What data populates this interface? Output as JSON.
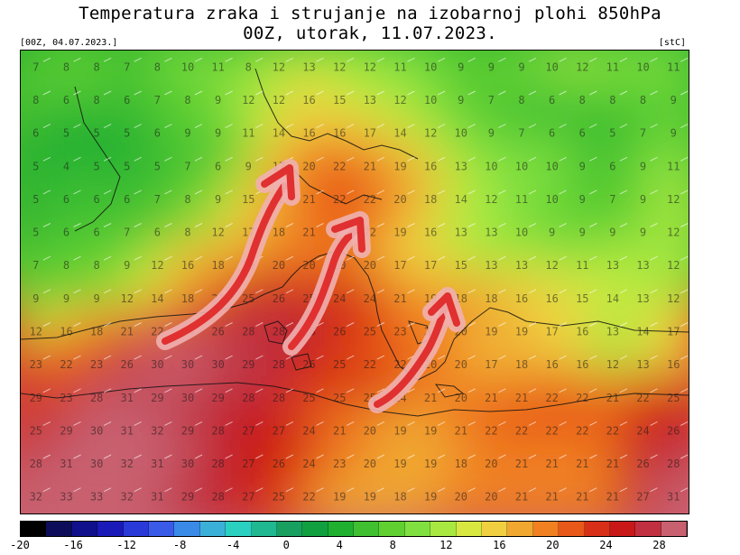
{
  "title_line1": "Temperatura zraka i strujanje na izobarnoj plohi 850hPa",
  "title_line2": "00Z, utorak, 11.07.2023.",
  "run_label": "[00Z, 04.07.2023.]",
  "unit_label": "[stC]",
  "colorbar": {
    "min": -20,
    "max": 30,
    "step": 2,
    "tick_labels": [
      "-20",
      "-16",
      "-12",
      "-8",
      "-4",
      "0",
      "4",
      "8",
      "12",
      "16",
      "20",
      "24",
      "28"
    ],
    "colors": [
      "#000000",
      "#0c0c5a",
      "#10108c",
      "#1a1ab8",
      "#2a3ad8",
      "#3a5ae8",
      "#3a8ae8",
      "#3ab0d8",
      "#2ad0c0",
      "#20b890",
      "#18a060",
      "#10a040",
      "#20b030",
      "#40c030",
      "#60d030",
      "#80e040",
      "#a8e840",
      "#d8e840",
      "#f0d040",
      "#f0a830",
      "#f08020",
      "#e85818",
      "#d83018",
      "#c81818",
      "#c03040",
      "#c86070"
    ]
  },
  "grid_values": [
    [
      7,
      8,
      8,
      7,
      8,
      10,
      11,
      8,
      12,
      13,
      12,
      12,
      11,
      10,
      9,
      9,
      9,
      10,
      12,
      11,
      10,
      11
    ],
    [
      8,
      6,
      8,
      6,
      7,
      8,
      9,
      12,
      12,
      16,
      15,
      13,
      12,
      10,
      9,
      7,
      8,
      6,
      8,
      8,
      8,
      9
    ],
    [
      6,
      5,
      5,
      5,
      6,
      9,
      9,
      11,
      14,
      16,
      16,
      17,
      14,
      12,
      10,
      9,
      7,
      6,
      6,
      5,
      7,
      9
    ],
    [
      5,
      4,
      5,
      5,
      5,
      7,
      6,
      9,
      17,
      20,
      22,
      21,
      19,
      16,
      13,
      10,
      10,
      10,
      9,
      6,
      9,
      11
    ],
    [
      5,
      6,
      6,
      6,
      7,
      8,
      9,
      15,
      18,
      21,
      22,
      22,
      20,
      18,
      14,
      12,
      11,
      10,
      9,
      7,
      9,
      12
    ],
    [
      5,
      6,
      6,
      7,
      6,
      8,
      12,
      17,
      18,
      21,
      22,
      22,
      19,
      16,
      13,
      13,
      10,
      9,
      9,
      9,
      9,
      12
    ],
    [
      7,
      8,
      8,
      9,
      12,
      16,
      18,
      19,
      20,
      20,
      20,
      20,
      17,
      17,
      15,
      13,
      13,
      12,
      11,
      13,
      13,
      12
    ],
    [
      9,
      9,
      9,
      12,
      14,
      18,
      21,
      25,
      26,
      25,
      24,
      24,
      21,
      19,
      18,
      18,
      16,
      16,
      15,
      14,
      13,
      12
    ],
    [
      12,
      16,
      18,
      21,
      22,
      24,
      26,
      28,
      28,
      28,
      26,
      25,
      23,
      21,
      20,
      19,
      19,
      17,
      16,
      13,
      14,
      17
    ],
    [
      23,
      22,
      23,
      26,
      30,
      30,
      30,
      29,
      28,
      26,
      25,
      22,
      22,
      20,
      20,
      17,
      18,
      16,
      16,
      12,
      13,
      16
    ],
    [
      29,
      23,
      28,
      31,
      29,
      30,
      29,
      28,
      28,
      25,
      25,
      25,
      24,
      21,
      20,
      21,
      21,
      22,
      22,
      21,
      22,
      25
    ],
    [
      25,
      29,
      30,
      31,
      32,
      29,
      28,
      27,
      27,
      24,
      21,
      20,
      19,
      19,
      21,
      22,
      22,
      22,
      22,
      22,
      24,
      26
    ],
    [
      28,
      31,
      30,
      32,
      31,
      30,
      28,
      27,
      26,
      24,
      23,
      20,
      19,
      19,
      18,
      20,
      21,
      21,
      21,
      21,
      26,
      28
    ],
    [
      32,
      33,
      33,
      32,
      31,
      29,
      28,
      27,
      25,
      22,
      19,
      19,
      18,
      19,
      20,
      20,
      21,
      21,
      21,
      21,
      27,
      31
    ]
  ]
}
